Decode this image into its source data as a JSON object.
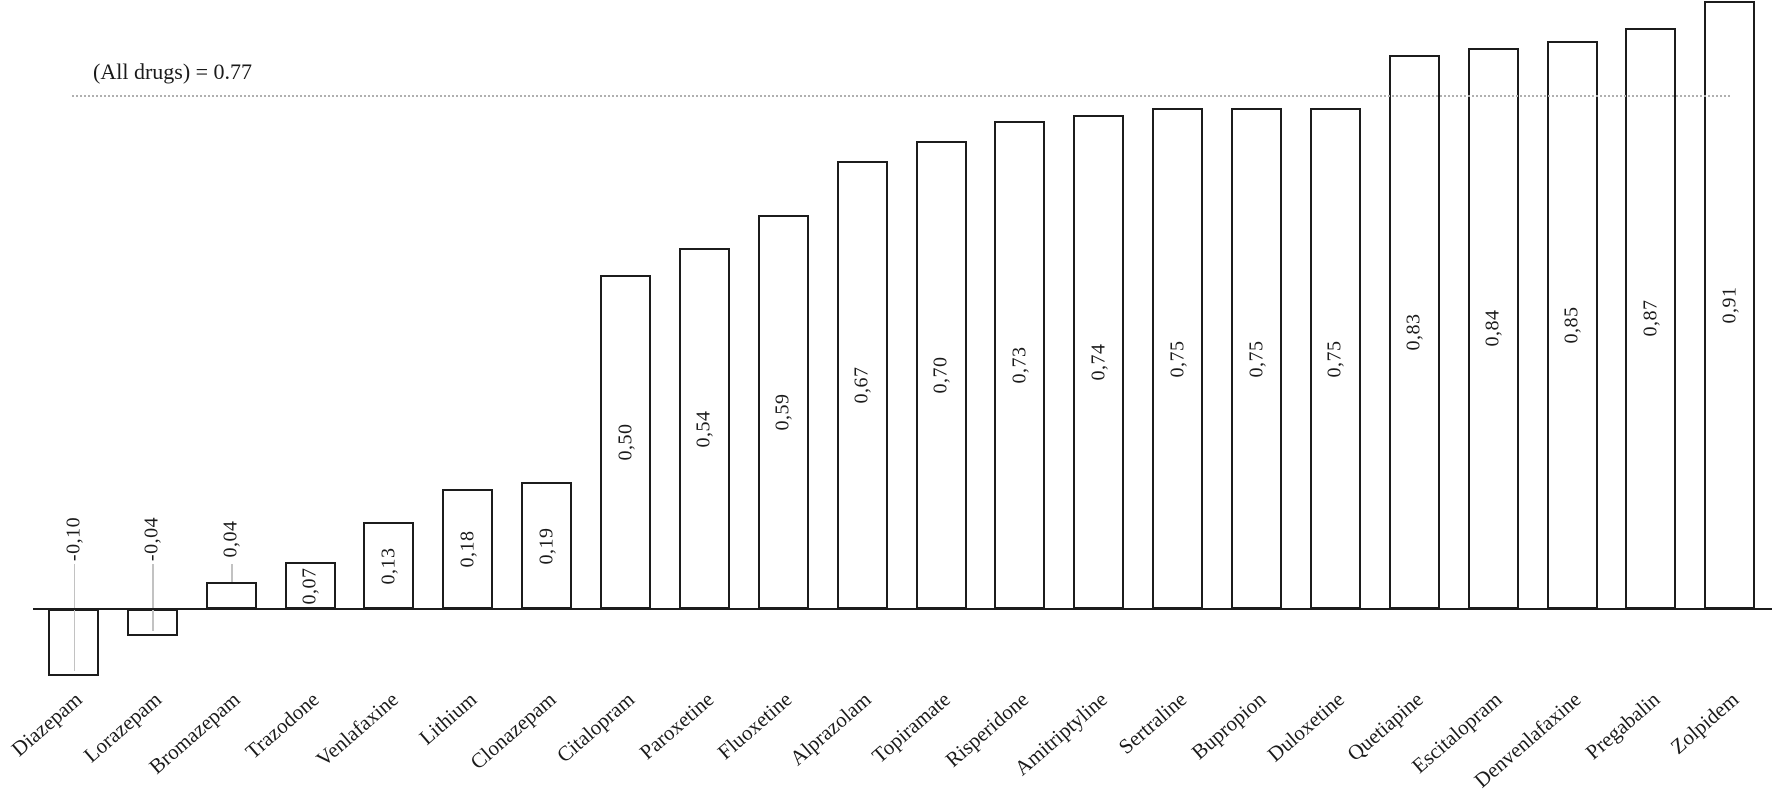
{
  "chart_data": {
    "type": "bar",
    "categories": [
      "Diazepam",
      "Lorazepam",
      "Bromazepam",
      "Trazodone",
      "Venlafaxine",
      "Lithium",
      "Clonazepam",
      "Citalopram",
      "Paroxetine",
      "Fluoxetine",
      "Alprazolam",
      "Topiramate",
      "Risperidone",
      "Amitriptyline",
      "Sertraline",
      "Bupropion",
      "Duloxetine",
      "Quetiapine",
      "Escitalopram",
      "Denvenlafaxine",
      "Pregabalin",
      "Zolpidem"
    ],
    "values": [
      -0.1,
      -0.04,
      0.04,
      0.07,
      0.13,
      0.18,
      0.19,
      0.5,
      0.54,
      0.59,
      0.67,
      0.7,
      0.73,
      0.74,
      0.75,
      0.75,
      0.75,
      0.83,
      0.84,
      0.85,
      0.87,
      0.91
    ],
    "value_labels": [
      "-0,10",
      "-0,04",
      "0,04",
      "0,07",
      "0,13",
      "0,18",
      "0,19",
      "0,50",
      "0,54",
      "0,59",
      "0,67",
      "0,70",
      "0,73",
      "0,74",
      "0,75",
      "0,75",
      "0,75",
      "0,83",
      "0,84",
      "0,85",
      "0,87",
      "0,91"
    ],
    "value_label_placement": [
      "above-axis",
      "above-axis",
      "above-axis",
      "inside",
      "inside",
      "inside",
      "inside",
      "inside",
      "inside",
      "inside",
      "inside",
      "inside",
      "inside",
      "inside",
      "inside",
      "inside",
      "inside",
      "inside",
      "inside",
      "inside",
      "inside",
      "inside"
    ],
    "reference_line": {
      "label": "(All drugs) = 0.77",
      "value": 0.77,
      "style": "dotted"
    },
    "ylim": [
      -0.12,
      0.92
    ],
    "grid": "off",
    "legend": "none",
    "x_tick_rotation_deg": -41,
    "bar_fill": "#ffffff",
    "bar_border_color": "#1c1c1c",
    "axis_color": "#1c1c1c",
    "text_color": "#1a1a1a",
    "reference_line_color": "#b0b0b0",
    "leader_line_color": "#c2c2c2",
    "background": "#ffffff"
  }
}
